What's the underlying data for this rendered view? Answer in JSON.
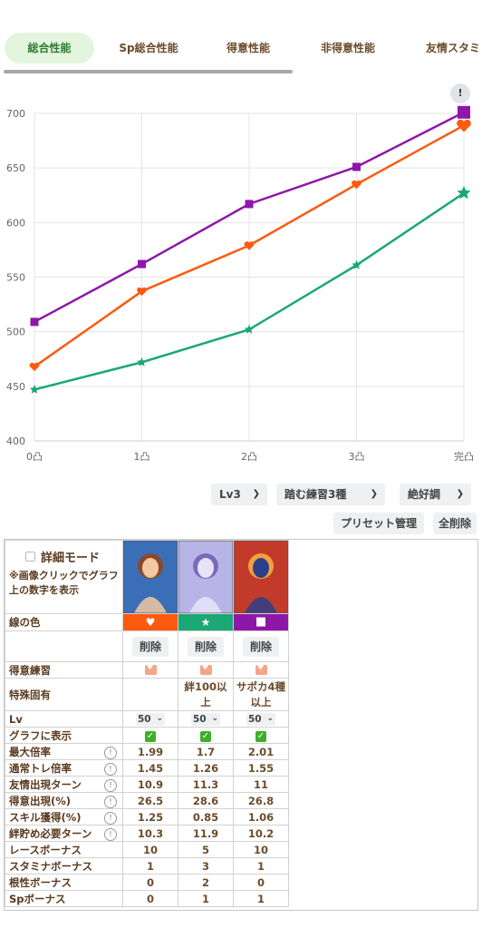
{
  "tabs": [
    {
      "label": "総合性能",
      "active": true
    },
    {
      "label": "Sp総合性能",
      "active": false
    },
    {
      "label": "得意性能",
      "active": false
    },
    {
      "label": "非得意性能",
      "active": false
    },
    {
      "label": "友情スタミ",
      "active": false
    }
  ],
  "info_badge": "!",
  "chart_data": {
    "type": "line",
    "categories": [
      "0凸",
      "1凸",
      "2凸",
      "3凸",
      "完凸"
    ],
    "ylim": [
      400,
      700
    ],
    "yticks": [
      400,
      450,
      500,
      550,
      600,
      650,
      700
    ],
    "grid": true,
    "series": [
      {
        "color": "#8e17a8",
        "marker": "square",
        "values": [
          509,
          562,
          617,
          651,
          701
        ]
      },
      {
        "color": "#fc5a0f",
        "marker": "heart",
        "values": [
          468,
          537,
          579,
          635,
          689
        ]
      },
      {
        "color": "#1aa874",
        "marker": "star",
        "values": [
          447,
          472,
          502,
          561,
          627
        ]
      }
    ]
  },
  "controls": {
    "level": "Lv3",
    "training": "踏む練習3種",
    "condition": "絶好調",
    "preset_button": "プリセット管理",
    "delete_all_button": "全削除"
  },
  "detail": {
    "mode_label": "詳細モード",
    "note": "※画像クリックでグラフ上の数字を表示"
  },
  "cards": [
    {
      "line_color": "#fc5a0f",
      "icon": "heart-icon",
      "symbol": "♥",
      "art_colors": [
        "#3a6fb8",
        "#f2c9a0",
        "#8a4a2a"
      ]
    },
    {
      "line_color": "#1aa874",
      "icon": "star-icon",
      "symbol": "★",
      "art_colors": [
        "#b9b4e8",
        "#e8e4f8",
        "#7a6ab8"
      ]
    },
    {
      "line_color": "#8e17a8",
      "icon": "square-icon",
      "symbol": "■",
      "art_colors": [
        "#c23b2a",
        "#2d3f8a",
        "#f2a040"
      ]
    }
  ],
  "table": {
    "line_color_label": "線の色",
    "delete_label": "削除",
    "rows": [
      {
        "label": "得意練習",
        "help": false,
        "values": [
          "",
          "",
          ""
        ],
        "kind": "specialty"
      },
      {
        "label": "特殊固有",
        "help": false,
        "values": [
          "",
          "絆100以上",
          "サポカ4種以上"
        ],
        "kind": "text"
      },
      {
        "label": "Lv",
        "help": false,
        "values": [
          "50",
          "50",
          "50"
        ],
        "kind": "select"
      },
      {
        "label": "グラフに表示",
        "help": false,
        "values": [
          "✓",
          "✓",
          "✓"
        ],
        "kind": "check"
      },
      {
        "label": "最大倍率",
        "help": true,
        "values": [
          "1.99",
          "1.7",
          "2.01"
        ],
        "kind": "text"
      },
      {
        "label": "通常トレ倍率",
        "help": true,
        "values": [
          "1.45",
          "1.26",
          "1.55"
        ],
        "kind": "text"
      },
      {
        "label": "友情出現ターン",
        "help": true,
        "values": [
          "10.9",
          "11.3",
          "11"
        ],
        "kind": "text"
      },
      {
        "label": "得意出現(%)",
        "help": true,
        "values": [
          "26.5",
          "28.6",
          "26.8"
        ],
        "kind": "text"
      },
      {
        "label": "スキル獲得(%)",
        "help": true,
        "values": [
          "1.25",
          "0.85",
          "1.06"
        ],
        "kind": "text"
      },
      {
        "label": "絆貯め必要ターン",
        "help": true,
        "values": [
          "10.3",
          "11.9",
          "10.2"
        ],
        "kind": "text"
      },
      {
        "label": "レースボーナス",
        "help": false,
        "values": [
          "10",
          "5",
          "10"
        ],
        "kind": "text"
      },
      {
        "label": "スタミナボーナス",
        "help": false,
        "values": [
          "1",
          "3",
          "1"
        ],
        "kind": "text"
      },
      {
        "label": "根性ボーナス",
        "help": false,
        "values": [
          "0",
          "2",
          "0"
        ],
        "kind": "text"
      },
      {
        "label": "Spボーナス",
        "help": false,
        "values": [
          "0",
          "1",
          "1"
        ],
        "kind": "text"
      }
    ]
  }
}
